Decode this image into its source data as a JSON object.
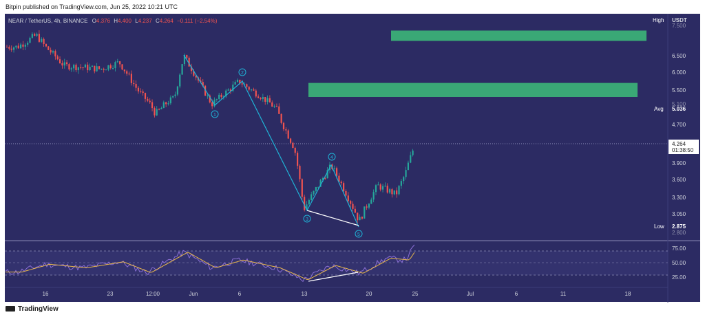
{
  "header": {
    "published": "Bitpin published on TradingView.com, Jun 25, 2022 10:21 UTC"
  },
  "legend": {
    "symbol": "NEAR / TetherUS, 4h, BINANCE",
    "o_label": "O",
    "o": "4.376",
    "h_label": "H",
    "h": "4.400",
    "l_label": "L",
    "l": "4.237",
    "c_label": "C",
    "c": "4.264",
    "chg": "−0.111 (−2.54%)"
  },
  "price_scale": {
    "currency": "USDT",
    "ticks": [
      "6.500",
      "6.000",
      "5.500",
      "4.700",
      "3.900",
      "3.600",
      "3.300",
      "3.050"
    ],
    "partial_ticks": [
      "7.500",
      "5.100",
      "2.800"
    ],
    "high_label": "High",
    "avg_label": "Avg",
    "avg_value": "5.036",
    "low_label": "Low",
    "low_value": "2.875",
    "last_price": "4.264",
    "countdown": "01:38:50"
  },
  "rsi_scale": {
    "ticks": [
      "75.00",
      "50.00",
      "25.00"
    ]
  },
  "time_axis": {
    "labels": [
      "16",
      "23",
      "12:00",
      "Jun",
      "6",
      "13",
      "20",
      "25",
      "Jul",
      "6",
      "11",
      "18"
    ]
  },
  "wave_labels": [
    "1",
    "2",
    "3",
    "4",
    "5"
  ],
  "footer": {
    "brand": "TradingView"
  },
  "colors": {
    "background": "#2c2b63",
    "bull": "#26a69a",
    "bear": "#ef5350",
    "wave_line": "#1fb3d6",
    "zone": "#3aa876",
    "rsi": "#7e57c2",
    "rsi_ma": "#e8b74a"
  },
  "chart_data": {
    "type": "candlestick",
    "title": "NEAR / TetherUS, 4h, BINANCE",
    "xlabel": "",
    "ylabel": "",
    "ylim_log": [
      2.8,
      7.5
    ],
    "last_price": 4.264,
    "ohlc_last": {
      "open": 4.376,
      "high": 4.4,
      "low": 4.237,
      "close": 4.264
    },
    "resistance_zones": [
      {
        "from": 7.0,
        "to": 7.35
      },
      {
        "from": 5.3,
        "to": 5.7
      }
    ],
    "elliott_wave_points": [
      {
        "label": "1",
        "date": "Jun 3",
        "price": 5.1
      },
      {
        "label": "2",
        "date": "Jun 6",
        "price": 5.75
      },
      {
        "label": "3",
        "date": "Jun 13",
        "price": 3.12
      },
      {
        "label": "4",
        "date": "Jun 16",
        "price": 3.85
      },
      {
        "label": "5",
        "date": "Jun 19",
        "price": 2.95
      }
    ],
    "price_path": [
      {
        "date": "May 13",
        "price": 6.8
      },
      {
        "date": "May 15",
        "price": 7.2
      },
      {
        "date": "May 16",
        "price": 6.8
      },
      {
        "date": "May 18",
        "price": 6.2
      },
      {
        "date": "May 22",
        "price": 6.1
      },
      {
        "date": "May 24",
        "price": 6.3
      },
      {
        "date": "May 26",
        "price": 5.5
      },
      {
        "date": "May 28",
        "price": 4.9
      },
      {
        "date": "May 30",
        "price": 5.3
      },
      {
        "date": "May 31",
        "price": 6.5
      },
      {
        "date": "Jun 3",
        "price": 5.1
      },
      {
        "date": "Jun 6",
        "price": 5.75
      },
      {
        "date": "Jun 10",
        "price": 5.0
      },
      {
        "date": "Jun 12",
        "price": 4.2
      },
      {
        "date": "Jun 13",
        "price": 3.12
      },
      {
        "date": "Jun 16",
        "price": 3.85
      },
      {
        "date": "Jun 19",
        "price": 2.95
      },
      {
        "date": "Jun 21",
        "price": 3.5
      },
      {
        "date": "Jun 23",
        "price": 3.35
      },
      {
        "date": "Jun 24",
        "price": 3.7
      },
      {
        "date": "Jun 25",
        "price": 4.264
      }
    ],
    "rsi": {
      "levels": [
        70,
        50,
        30
      ],
      "path": [
        {
          "date": "May 13",
          "value": 35
        },
        {
          "date": "May 16",
          "value": 48
        },
        {
          "date": "May 20",
          "value": 42
        },
        {
          "date": "May 24",
          "value": 52
        },
        {
          "date": "May 27",
          "value": 34
        },
        {
          "date": "May 31",
          "value": 68
        },
        {
          "date": "Jun 3",
          "value": 42
        },
        {
          "date": "Jun 6",
          "value": 55
        },
        {
          "date": "Jun 10",
          "value": 42
        },
        {
          "date": "Jun 13",
          "value": 22
        },
        {
          "date": "Jun 16",
          "value": 46
        },
        {
          "date": "Jun 19",
          "value": 33
        },
        {
          "date": "Jun 22",
          "value": 58
        },
        {
          "date": "Jun 24",
          "value": 55
        },
        {
          "date": "Jun 25",
          "value": 78
        }
      ]
    }
  }
}
